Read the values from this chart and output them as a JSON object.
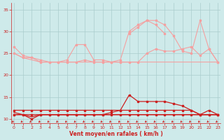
{
  "x": [
    0,
    1,
    2,
    3,
    4,
    5,
    6,
    7,
    8,
    9,
    10,
    11,
    12,
    13,
    14,
    15,
    16,
    17,
    18,
    19,
    20,
    21,
    22,
    23
  ],
  "line_rafall_high": [
    26.5,
    24.5,
    24.0,
    23.5,
    23.0,
    23.0,
    23.5,
    27.0,
    27.0,
    23.5,
    23.5,
    23.0,
    23.5,
    30.0,
    31.5,
    32.5,
    32.5,
    31.5,
    29.0,
    25.5,
    25.0,
    32.5,
    26.0,
    23.0
  ],
  "line_rafall_mid": [
    null,
    null,
    null,
    null,
    null,
    null,
    null,
    null,
    null,
    null,
    null,
    null,
    null,
    29.5,
    31.0,
    32.5,
    31.5,
    29.5,
    null,
    null,
    null,
    null,
    null,
    null
  ],
  "line_rafall_low_a": [
    25.0,
    24.0,
    23.5,
    23.0,
    23.0,
    23.0,
    23.0,
    23.0,
    23.0,
    23.0,
    23.0,
    23.0,
    23.0,
    23.0,
    23.0,
    23.0,
    23.0,
    23.0,
    23.0,
    23.0,
    23.0,
    23.0,
    23.0,
    23.0
  ],
  "line_rafall_low_b": [
    25.0,
    24.0,
    24.0,
    23.0,
    23.0,
    23.0,
    23.0,
    23.0,
    23.5,
    23.0,
    23.0,
    23.0,
    23.0,
    23.0,
    23.0,
    25.0,
    26.0,
    25.5,
    25.5,
    26.0,
    26.5,
    24.5,
    26.0,
    23.0
  ],
  "lower_gust": [
    11.0,
    11.0,
    11.0,
    11.0,
    11.0,
    11.0,
    11.0,
    11.0,
    11.0,
    11.0,
    11.0,
    11.5,
    12.0,
    15.5,
    14.0,
    14.0,
    14.0,
    14.0,
    13.5,
    13.0,
    12.0,
    11.0,
    12.0,
    11.0
  ],
  "lower_mean_a": [
    12.0,
    12.0,
    12.0,
    12.0,
    12.0,
    12.0,
    12.0,
    12.0,
    12.0,
    12.0,
    12.0,
    12.0,
    12.0,
    12.0,
    12.0,
    12.0,
    12.0,
    12.0,
    12.0,
    12.0,
    12.0,
    11.0,
    11.0,
    11.0
  ],
  "lower_mean_b": [
    11.5,
    11.0,
    10.5,
    11.0,
    11.0,
    11.0,
    11.0,
    11.0,
    11.0,
    11.0,
    11.0,
    11.0,
    11.0,
    11.0,
    11.0,
    11.0,
    11.0,
    11.0,
    11.0,
    11.0,
    11.0,
    11.0,
    11.0,
    11.0
  ],
  "lower_mean_c": [
    11.0,
    11.0,
    10.0,
    11.0,
    11.0,
    11.0,
    11.0,
    11.0,
    11.0,
    11.0,
    11.0,
    11.0,
    11.0,
    11.0,
    11.0,
    11.0,
    11.0,
    11.0,
    11.0,
    11.0,
    11.0,
    11.0,
    11.0,
    11.0
  ],
  "color_light": "#f4a0a0",
  "color_dark": "#cc2020",
  "bg_color": "#ceeaea",
  "grid_color": "#aacccc",
  "xlabel": "Vent moyen/en rafales ( km/h )",
  "yticks": [
    10,
    15,
    20,
    25,
    30,
    35
  ],
  "xticks": [
    0,
    1,
    2,
    3,
    4,
    5,
    6,
    7,
    8,
    9,
    10,
    11,
    12,
    13,
    14,
    15,
    16,
    17,
    18,
    19,
    20,
    21,
    22,
    23
  ],
  "ylim": [
    9.0,
    36.5
  ],
  "xlim": [
    -0.3,
    23.3
  ]
}
